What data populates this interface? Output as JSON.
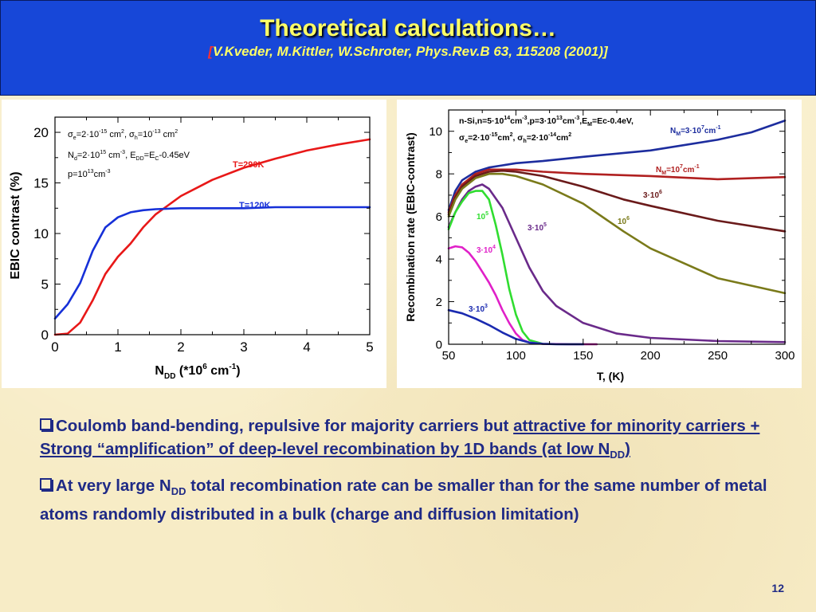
{
  "header": {
    "title": "Theoretical calculations…",
    "citation_open": "[",
    "citation": "V.Kveder, M.Kittler, W.Schroter, Phys.Rev.B 63, 115208 (2001)",
    "citation_close": "]"
  },
  "chart_data": [
    {
      "type": "line",
      "xlabel": "N_DD (*10^6 cm^-1)",
      "ylabel": "EBIC contrast (%)",
      "xlim": [
        0,
        5
      ],
      "ylim": [
        0,
        21.5
      ],
      "x_ticks": [
        "0",
        "1",
        "2",
        "3",
        "4",
        "5"
      ],
      "y_ticks": [
        "0",
        "5",
        "10",
        "15",
        "20"
      ],
      "annotation_lines": [
        "σe=2·10^-15 cm², σh=10^-13 cm²",
        "Nd=2·10^15 cm^-3, EDD=Ec-0.45eV",
        "p=10^13 cm^-3"
      ],
      "series": [
        {
          "name": "T=290K",
          "color": "#e81818",
          "x": [
            0,
            0.2,
            0.4,
            0.6,
            0.8,
            1.0,
            1.2,
            1.4,
            1.6,
            1.8,
            2.0,
            2.5,
            3.0,
            3.5,
            4.0,
            4.5,
            5.0
          ],
          "y": [
            0,
            0.1,
            1.2,
            3.4,
            6.0,
            7.7,
            9.0,
            10.6,
            11.9,
            12.8,
            13.7,
            15.3,
            16.5,
            17.4,
            18.2,
            18.8,
            19.3
          ]
        },
        {
          "name": "T=120K",
          "color": "#1630d8",
          "x": [
            0,
            0.2,
            0.4,
            0.6,
            0.8,
            1.0,
            1.2,
            1.4,
            1.6,
            2.0,
            2.5,
            3.0,
            3.5,
            4.0,
            4.5,
            5.0
          ],
          "y": [
            1.6,
            3.0,
            5.1,
            8.3,
            10.6,
            11.6,
            12.1,
            12.3,
            12.4,
            12.5,
            12.5,
            12.5,
            12.6,
            12.6,
            12.6,
            12.6
          ]
        }
      ]
    },
    {
      "type": "line",
      "xlabel": "T, (K)",
      "ylabel": "Recombination rate (EBIC-contrast)",
      "xlim": [
        50,
        300
      ],
      "ylim": [
        0,
        11
      ],
      "x_ticks": [
        "50",
        "100",
        "150",
        "200",
        "250",
        "300"
      ],
      "y_ticks": [
        "0",
        "2",
        "4",
        "6",
        "8",
        "10"
      ],
      "annotation_lines": [
        "n-Si,n=5·10^14cm^-3,p=3·10^13cm^-3,EM=Ec-0.4eV,",
        "σe=2·10^-15cm², σh=2·10^-14cm²"
      ],
      "series": [
        {
          "name": "NM=3·10^7cm^-1",
          "color": "#1d2d9e",
          "x": [
            50,
            55,
            60,
            70,
            80,
            90,
            100,
            120,
            150,
            200,
            250,
            275,
            300
          ],
          "y": [
            6.3,
            7.2,
            7.7,
            8.1,
            8.3,
            8.4,
            8.5,
            8.6,
            8.8,
            9.1,
            9.6,
            9.95,
            10.5
          ]
        },
        {
          "name": "NM=10^7cm^-1",
          "color": "#b02020",
          "x": [
            50,
            55,
            60,
            70,
            80,
            90,
            100,
            120,
            150,
            200,
            250,
            300
          ],
          "y": [
            6.2,
            7.0,
            7.5,
            8.0,
            8.2,
            8.2,
            8.2,
            8.1,
            8.0,
            7.9,
            7.75,
            7.85
          ]
        },
        {
          "name": "3·10^6",
          "color": "#6a1a1a",
          "x": [
            50,
            55,
            60,
            70,
            80,
            90,
            100,
            120,
            150,
            180,
            200,
            250,
            300
          ],
          "y": [
            6.1,
            6.9,
            7.4,
            7.9,
            8.1,
            8.15,
            8.1,
            7.9,
            7.4,
            6.8,
            6.5,
            5.8,
            5.3
          ]
        },
        {
          "name": "10^6",
          "color": "#7a7a1a",
          "x": [
            50,
            55,
            60,
            70,
            80,
            90,
            100,
            120,
            150,
            180,
            200,
            250,
            300
          ],
          "y": [
            6.0,
            6.8,
            7.3,
            7.8,
            8.0,
            8.0,
            7.9,
            7.5,
            6.6,
            5.3,
            4.5,
            3.1,
            2.4
          ]
        },
        {
          "name": "3·10^5",
          "color": "#6a2a8a",
          "x": [
            50,
            55,
            60,
            65,
            70,
            75,
            80,
            90,
            100,
            110,
            120,
            130,
            150,
            175,
            200,
            250,
            300
          ],
          "y": [
            5.5,
            6.2,
            6.8,
            7.2,
            7.4,
            7.5,
            7.3,
            6.4,
            5.0,
            3.6,
            2.5,
            1.8,
            1.0,
            0.5,
            0.3,
            0.15,
            0.1
          ]
        },
        {
          "name": "10^5",
          "color": "#30dd30",
          "x": [
            50,
            55,
            60,
            65,
            70,
            75,
            80,
            85,
            90,
            95,
            100,
            105,
            110,
            120,
            140,
            160
          ],
          "y": [
            5.4,
            6.2,
            6.7,
            7.1,
            7.2,
            7.2,
            6.8,
            5.6,
            4.2,
            2.6,
            1.4,
            0.6,
            0.2,
            0.02,
            0,
            0
          ]
        },
        {
          "name": "3·10^4",
          "color": "#e020c8",
          "x": [
            50,
            55,
            60,
            65,
            70,
            75,
            80,
            85,
            90,
            95,
            100,
            105,
            110,
            120,
            140,
            160
          ],
          "y": [
            4.5,
            4.6,
            4.55,
            4.3,
            3.9,
            3.4,
            2.9,
            2.3,
            1.6,
            1.0,
            0.5,
            0.2,
            0.08,
            0.02,
            0,
            0
          ]
        },
        {
          "name": "3·10^3",
          "color": "#1a2ab0",
          "x": [
            50,
            60,
            70,
            80,
            90,
            100,
            110,
            120,
            130,
            150
          ],
          "y": [
            1.6,
            1.45,
            1.2,
            0.9,
            0.55,
            0.25,
            0.08,
            0.02,
            0,
            0
          ]
        }
      ]
    }
  ],
  "bullets": [
    {
      "text_a": "Coulomb band-bending, repulsive for majority carriers but ",
      "text_u": "attractive for minority carriers + Strong “amplification” of deep-level recombination by 1D bands (at low N",
      "sub": "DD",
      "text_u_end": ")"
    },
    {
      "text_a": "At very large N",
      "sub": "DD",
      "text_b": " total recombination rate can be smaller than for the same number of metal atoms randomly distributed in a bulk (charge and diffusion limitation)"
    }
  ],
  "page_number": "12"
}
